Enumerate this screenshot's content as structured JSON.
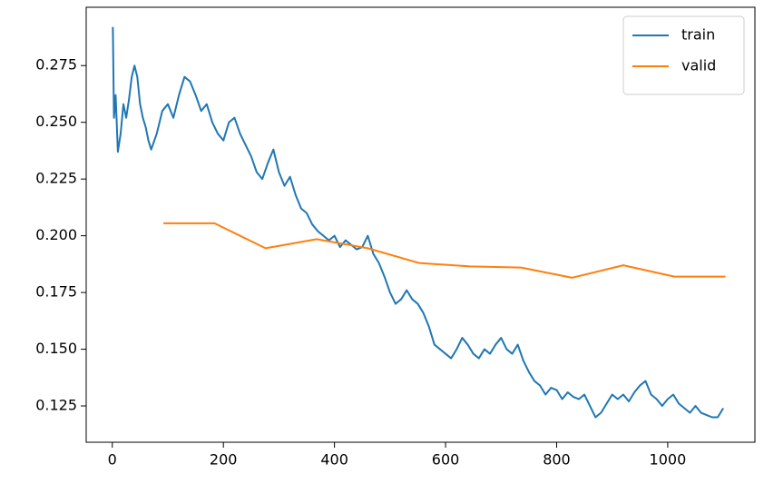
{
  "chart_data": {
    "type": "line",
    "series": [
      {
        "name": "train",
        "color": "#1f77b4",
        "x": [
          1,
          3,
          6,
          10,
          15,
          20,
          25,
          30,
          35,
          40,
          45,
          50,
          55,
          60,
          65,
          70,
          80,
          90,
          100,
          110,
          120,
          130,
          140,
          150,
          160,
          170,
          180,
          190,
          200,
          210,
          220,
          230,
          240,
          250,
          260,
          270,
          280,
          290,
          300,
          310,
          320,
          330,
          340,
          350,
          360,
          370,
          380,
          390,
          400,
          410,
          420,
          430,
          440,
          450,
          460,
          470,
          480,
          490,
          500,
          510,
          520,
          530,
          540,
          550,
          560,
          570,
          580,
          590,
          600,
          610,
          620,
          630,
          640,
          650,
          660,
          670,
          680,
          690,
          700,
          710,
          720,
          730,
          740,
          750,
          760,
          770,
          780,
          790,
          800,
          810,
          820,
          830,
          840,
          850,
          860,
          870,
          880,
          890,
          900,
          910,
          920,
          930,
          940,
          950,
          960,
          970,
          980,
          990,
          1000,
          1010,
          1020,
          1030,
          1040,
          1050,
          1060,
          1070,
          1080,
          1090,
          1100
        ],
        "values": [
          0.292,
          0.252,
          0.262,
          0.237,
          0.245,
          0.258,
          0.252,
          0.26,
          0.27,
          0.275,
          0.27,
          0.258,
          0.252,
          0.248,
          0.242,
          0.238,
          0.245,
          0.255,
          0.258,
          0.252,
          0.262,
          0.27,
          0.268,
          0.262,
          0.255,
          0.258,
          0.25,
          0.245,
          0.242,
          0.25,
          0.252,
          0.245,
          0.24,
          0.235,
          0.228,
          0.225,
          0.232,
          0.238,
          0.228,
          0.222,
          0.226,
          0.218,
          0.212,
          0.21,
          0.205,
          0.202,
          0.2,
          0.198,
          0.2,
          0.195,
          0.198,
          0.196,
          0.194,
          0.195,
          0.2,
          0.192,
          0.188,
          0.182,
          0.175,
          0.17,
          0.172,
          0.176,
          0.172,
          0.17,
          0.166,
          0.16,
          0.152,
          0.15,
          0.148,
          0.146,
          0.15,
          0.155,
          0.152,
          0.148,
          0.146,
          0.15,
          0.148,
          0.152,
          0.155,
          0.15,
          0.148,
          0.152,
          0.145,
          0.14,
          0.136,
          0.134,
          0.13,
          0.133,
          0.132,
          0.128,
          0.131,
          0.129,
          0.128,
          0.13,
          0.125,
          0.12,
          0.122,
          0.126,
          0.13,
          0.128,
          0.13,
          0.127,
          0.131,
          0.134,
          0.136,
          0.13,
          0.128,
          0.125,
          0.128,
          0.13,
          0.126,
          0.124,
          0.122,
          0.125,
          0.122,
          0.121,
          0.12,
          0.12,
          0.124
        ]
      },
      {
        "name": "valid",
        "color": "#ff7f0e",
        "x": [
          92,
          184,
          276,
          368,
          460,
          552,
          644,
          736,
          828,
          920,
          1012,
          1104
        ],
        "values": [
          0.2055,
          0.2055,
          0.1945,
          0.1985,
          0.1945,
          0.188,
          0.1865,
          0.186,
          0.1815,
          0.187,
          0.182,
          0.182
        ]
      }
    ],
    "xlim": [
      -47,
      1157
    ],
    "xticks": [
      0,
      200,
      400,
      600,
      800,
      1000
    ],
    "ylim": [
      0.109,
      0.3007
    ],
    "yticks": [
      0.125,
      {
        "value": 0.15,
        "label": "0.150"
      },
      0.175,
      {
        "value": 0.2,
        "label": "0.200"
      },
      0.225,
      {
        "value": 0.25,
        "label": "0.250"
      },
      0.275
    ],
    "grid": false,
    "legend": "upper right"
  }
}
